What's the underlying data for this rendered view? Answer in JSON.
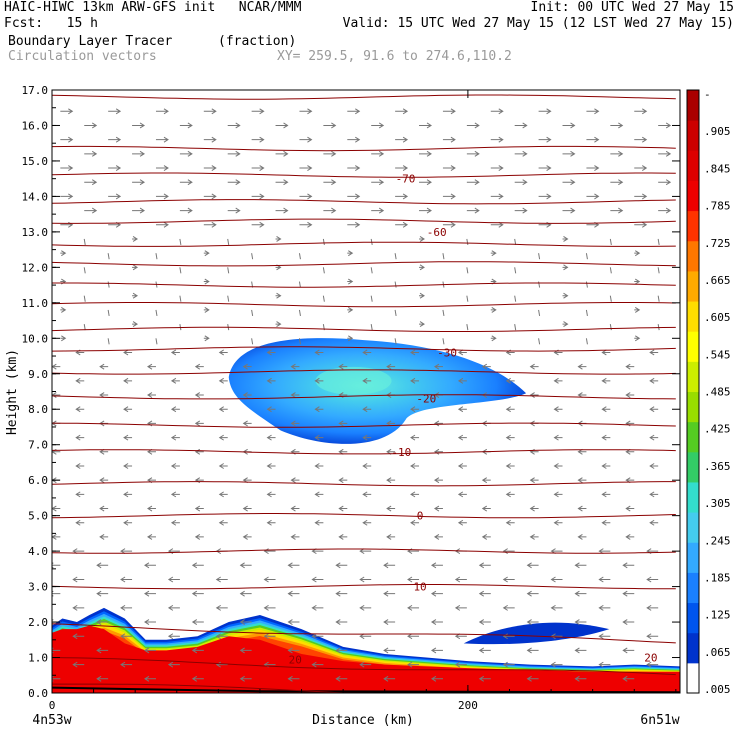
{
  "header": {
    "line1_left": "HAIC-HIWC 13km ARW-GFS init   NCAR/MMM",
    "line1_right": "Init: 00 UTC Wed 27 May 15",
    "line2_left": "Fcst:   15 h",
    "line2_right": "Valid: 15 UTC Wed 27 May 15 (12 LST Wed 27 May 15)",
    "line3_field": "Boundary Layer Tracer",
    "line3_units": "(fraction)",
    "line4_field": "Circulation vectors",
    "line4_xy": "XY= 259.5, 91.6 to 274.6,110.2"
  },
  "chart_data": {
    "type": "heatmap",
    "title": "Boundary Layer Tracer",
    "xlabel": "Distance (km)",
    "ylabel": "Height (km)",
    "xlim": [
      0,
      302
    ],
    "ylim": [
      0,
      17
    ],
    "x_ticks": [
      0,
      200
    ],
    "x_tick_labels": [
      "0",
      "200"
    ],
    "x_endpoint_labels": [
      "4n53w",
      "6n51w"
    ],
    "y_ticks": [
      0,
      1,
      2,
      3,
      4,
      5,
      6,
      7,
      8,
      9,
      10,
      11,
      12,
      13,
      14,
      15,
      16,
      17
    ],
    "y_tick_labels": [
      "0.0",
      "1.0",
      "2.0",
      "3.0",
      "4.0",
      "5.0",
      "6.0",
      "7.0",
      "8.0",
      "9.0",
      "10.0",
      "11.0",
      "12.0",
      "13.0",
      "14.0",
      "15.0",
      "16.0",
      "17.0"
    ],
    "colorbar": {
      "labels": [
        ".005",
        ".065",
        ".125",
        ".185",
        ".245",
        ".305",
        ".365",
        ".425",
        ".485",
        ".545",
        ".605",
        ".665",
        ".725",
        ".785",
        ".845",
        ".905",
        "-"
      ],
      "colors": [
        "#ffffff",
        "#0033cc",
        "#0055ee",
        "#1a80ff",
        "#33aaff",
        "#44ccee",
        "#33ddcc",
        "#33cc66",
        "#55cc22",
        "#99dd00",
        "#ccee00",
        "#ffff00",
        "#ffdd00",
        "#ffaa00",
        "#ff7700",
        "#ff3300",
        "#ee0000",
        "#dd0000",
        "#cc0000",
        "#aa0000"
      ]
    },
    "boundary_layer": {
      "x": [
        0,
        5,
        12,
        18,
        25,
        35,
        45,
        55,
        70,
        85,
        100,
        120,
        140,
        160,
        180,
        200,
        230,
        260,
        280,
        302
      ],
      "top_km": [
        1.9,
        2.1,
        2.0,
        2.2,
        2.4,
        2.1,
        1.5,
        1.5,
        1.6,
        2.0,
        2.2,
        1.8,
        1.3,
        1.1,
        1.0,
        0.9,
        0.8,
        0.75,
        0.8,
        0.75
      ],
      "core_top_km": [
        1.7,
        1.8,
        1.8,
        1.9,
        1.8,
        1.4,
        1.2,
        1.2,
        1.3,
        1.6,
        1.5,
        1.1,
        0.9,
        0.8,
        0.75,
        0.7,
        0.65,
        0.6,
        0.6,
        0.6
      ]
    },
    "upper_plume": {
      "center_x_km": 145,
      "center_z_km": 8.8,
      "x_range_km": [
        85,
        228
      ],
      "z_range_km": [
        6.9,
        10.0
      ],
      "max_fraction": 0.305
    },
    "small_plume": {
      "x_range_km": [
        198,
        268
      ],
      "z_range_km": [
        1.3,
        2.1
      ]
    },
    "contours": [
      {
        "label": "-70",
        "z_km": 14.5,
        "x_km": 170
      },
      {
        "label": "-60",
        "z_km": 13.0,
        "x_km": 185
      },
      {
        "label": "-30",
        "z_km": 9.6,
        "x_km": 190
      },
      {
        "label": "-20",
        "z_km": 8.3,
        "x_km": 180
      },
      {
        "label": "-10",
        "z_km": 6.8,
        "x_km": 168
      },
      {
        "label": "0",
        "z_km": 5.0,
        "x_km": 177
      },
      {
        "label": "10",
        "z_km": 3.0,
        "x_km": 177
      },
      {
        "label": "20",
        "z_km": 0.95,
        "x_km": 117
      },
      {
        "label": "20",
        "z_km": 1.0,
        "x_km": 288
      }
    ],
    "grid": false,
    "legend": "colorbar right"
  }
}
